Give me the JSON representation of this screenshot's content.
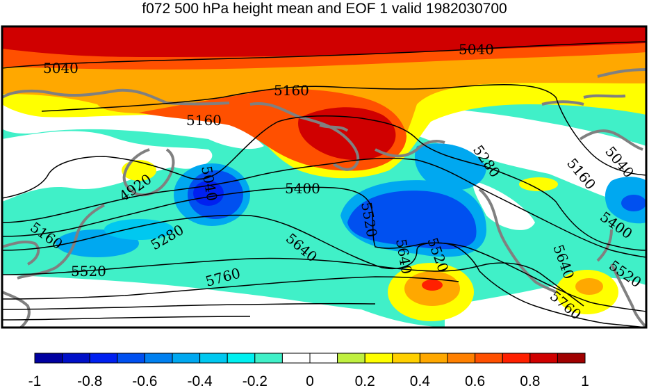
{
  "title": "f072 500 hPa height mean and EOF 1 valid 1982030700",
  "contour_labels": [
    "5040",
    "5040",
    "5160",
    "5160",
    "5280",
    "4920",
    "5040",
    "5400",
    "5520",
    "5160",
    "5040",
    "5160",
    "5280",
    "5520",
    "5640",
    "5760",
    "5520",
    "5640",
    "5400",
    "5520",
    "5640",
    "5760"
  ],
  "colorbar": {
    "colors": [
      "#0000a0",
      "#0010c8",
      "#0020f0",
      "#0050f0",
      "#0080f0",
      "#00a8f0",
      "#00c8f0",
      "#00f0f0",
      "#40f0c8",
      "#ffffff",
      "#ffffff",
      "#c0f040",
      "#ffff00",
      "#ffd000",
      "#ffa800",
      "#ff8000",
      "#ff5000",
      "#ff2000",
      "#d00000",
      "#a00000"
    ],
    "tick_labels": [
      "-1",
      "-0.8",
      "-0.6",
      "-0.4",
      "-0.2",
      "0",
      "0.2",
      "0.4",
      "0.6",
      "0.8",
      "1"
    ]
  }
}
